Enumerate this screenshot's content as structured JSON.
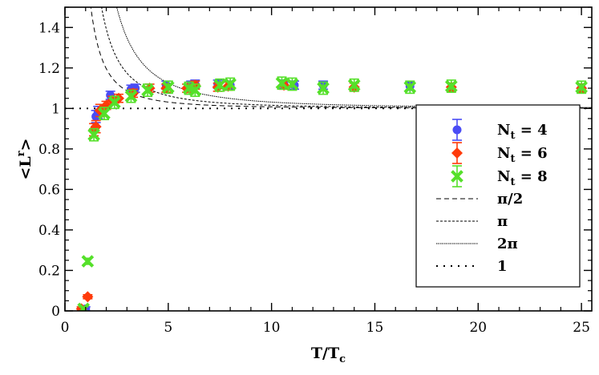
{
  "chart_data": {
    "type": "scatter",
    "title": "",
    "xlabel": {
      "main": "T/T",
      "sub": "c"
    },
    "ylabel": {
      "main": "<L",
      "sup": "r",
      "tail": ">"
    },
    "xlim": [
      0,
      25.5
    ],
    "ylim": [
      0,
      1.5
    ],
    "xticks": [
      0,
      5,
      10,
      15,
      20,
      25
    ],
    "yticks": [
      0,
      0.2,
      0.4,
      0.6,
      0.8,
      1,
      1.2,
      1.4
    ],
    "ytick_labels": [
      "0",
      "0.2",
      "0.4",
      "0.6",
      "0.8",
      "1",
      "1.2",
      "1.4"
    ],
    "legend_position": "lower-right",
    "series": [
      {
        "name": "N_t = 4",
        "label": {
          "main": "N",
          "sub": "t",
          "tail": " = 4"
        },
        "marker": "circle",
        "color": "#4a4cf5",
        "x": [
          0.9,
          1.0,
          1.5,
          1.6,
          2.2,
          3.2,
          3.4,
          4.9,
          6.1,
          6.3,
          7.4,
          8.0,
          10.6,
          11.1,
          12.5,
          16.7,
          25.0
        ],
        "y": [
          0.005,
          0.01,
          0.96,
          0.98,
          1.065,
          1.095,
          1.1,
          1.115,
          1.115,
          1.12,
          1.12,
          1.115,
          1.12,
          1.115,
          1.115,
          1.11,
          1.1
        ],
        "err": [
          0.01,
          0.01,
          0.03,
          0.03,
          0.02,
          0.02,
          0.02,
          0.02,
          0.02,
          0.02,
          0.02,
          0.02,
          0.02,
          0.02,
          0.02,
          0.02,
          0.02
        ]
      },
      {
        "name": "N_t = 6",
        "label": {
          "main": "N",
          "sub": "t",
          "tail": " = 6"
        },
        "marker": "diamond",
        "color": "#ff3a0a",
        "x": [
          0.8,
          1.1,
          1.4,
          1.5,
          1.7,
          2.0,
          2.3,
          2.6,
          3.3,
          4.1,
          4.9,
          5.9,
          6.3,
          7.4,
          7.9,
          10.6,
          14.0,
          18.7,
          25.0
        ],
        "y": [
          0.01,
          0.07,
          0.895,
          0.91,
          0.99,
          1.015,
          1.04,
          1.05,
          1.075,
          1.1,
          1.1,
          1.1,
          1.115,
          1.105,
          1.11,
          1.115,
          1.105,
          1.105,
          1.1
        ],
        "err": [
          0.01,
          0.01,
          0.03,
          0.03,
          0.03,
          0.02,
          0.02,
          0.02,
          0.02,
          0.02,
          0.02,
          0.02,
          0.02,
          0.02,
          0.02,
          0.02,
          0.02,
          0.02,
          0.02
        ]
      },
      {
        "name": "N_t = 8",
        "label": {
          "main": "N",
          "sub": "t",
          "tail": " = 8"
        },
        "marker": "x",
        "color": "#55e02a",
        "x": [
          0.9,
          1.1,
          1.4,
          1.9,
          2.4,
          3.2,
          4.0,
          5.0,
          6.0,
          6.3,
          7.5,
          8.0,
          10.5,
          11.0,
          12.5,
          14.0,
          16.7,
          18.7,
          25.0
        ],
        "y": [
          0.01,
          0.245,
          0.87,
          0.975,
          1.03,
          1.06,
          1.09,
          1.105,
          1.1,
          1.09,
          1.115,
          1.12,
          1.125,
          1.12,
          1.1,
          1.115,
          1.105,
          1.11,
          1.105
        ],
        "err": [
          0.01,
          0.015,
          0.03,
          0.03,
          0.03,
          0.03,
          0.03,
          0.03,
          0.03,
          0.03,
          0.03,
          0.03,
          0.03,
          0.03,
          0.03,
          0.03,
          0.03,
          0.03,
          0.03
        ]
      }
    ],
    "curves": [
      {
        "name": "π/2",
        "coefficient": 1.5708,
        "dash": "6,4",
        "x_start": 0.8,
        "x_end": 25.5
      },
      {
        "name": "π",
        "coefficient": 3.1416,
        "dash": "3,2",
        "x_start": 0.8,
        "x_end": 25.5
      },
      {
        "name": "2π",
        "coefficient": 6.2832,
        "dash": "1.5,1",
        "x_start": 0.8,
        "x_end": 25.5
      },
      {
        "name": "1",
        "constant": 1,
        "dash": "2,7",
        "x_start": 0,
        "x_end": 25.5
      }
    ],
    "legend_labels": [
      "π/2",
      "π",
      "2π",
      "1"
    ]
  }
}
